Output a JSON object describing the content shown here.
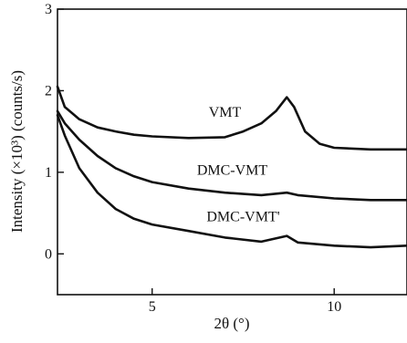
{
  "chart_data": {
    "type": "line",
    "title": "",
    "xlabel": "2θ (°)",
    "ylabel": "Intensity (×10³) (counts/s)",
    "xlim": [
      2.4,
      12
    ],
    "ylim": [
      -0.5,
      3
    ],
    "x_ticks": [
      5,
      10
    ],
    "y_ticks": [
      0,
      1,
      2,
      3
    ],
    "grid": false,
    "series": [
      {
        "name": "VMT",
        "points": [
          [
            2.4,
            2.05
          ],
          [
            2.6,
            1.8
          ],
          [
            3,
            1.65
          ],
          [
            3.5,
            1.55
          ],
          [
            4,
            1.5
          ],
          [
            4.5,
            1.46
          ],
          [
            5,
            1.44
          ],
          [
            6,
            1.42
          ],
          [
            7,
            1.43
          ],
          [
            7.5,
            1.5
          ],
          [
            8,
            1.6
          ],
          [
            8.4,
            1.75
          ],
          [
            8.7,
            1.92
          ],
          [
            8.9,
            1.8
          ],
          [
            9.2,
            1.5
          ],
          [
            9.6,
            1.35
          ],
          [
            10,
            1.3
          ],
          [
            11,
            1.28
          ],
          [
            12,
            1.28
          ]
        ]
      },
      {
        "name": "DMC-VMT",
        "points": [
          [
            2.4,
            1.75
          ],
          [
            2.6,
            1.6
          ],
          [
            3,
            1.4
          ],
          [
            3.5,
            1.2
          ],
          [
            4,
            1.05
          ],
          [
            4.5,
            0.95
          ],
          [
            5,
            0.88
          ],
          [
            6,
            0.8
          ],
          [
            7,
            0.75
          ],
          [
            8,
            0.72
          ],
          [
            8.7,
            0.75
          ],
          [
            9,
            0.72
          ],
          [
            10,
            0.68
          ],
          [
            11,
            0.66
          ],
          [
            12,
            0.66
          ]
        ]
      },
      {
        "name": "DMC-VMT'",
        "points": [
          [
            2.4,
            1.7
          ],
          [
            2.6,
            1.45
          ],
          [
            3,
            1.05
          ],
          [
            3.5,
            0.75
          ],
          [
            4,
            0.55
          ],
          [
            4.5,
            0.43
          ],
          [
            5,
            0.36
          ],
          [
            6,
            0.28
          ],
          [
            7,
            0.2
          ],
          [
            8,
            0.15
          ],
          [
            8.7,
            0.22
          ],
          [
            9,
            0.14
          ],
          [
            10,
            0.1
          ],
          [
            11,
            0.08
          ],
          [
            12,
            0.1
          ]
        ]
      }
    ],
    "annotations": [
      {
        "text": "VMT",
        "x": 7.0,
        "y": 1.68
      },
      {
        "text": "DMC-VMT",
        "x": 7.2,
        "y": 0.97
      },
      {
        "text": "DMC-VMT'",
        "x": 7.5,
        "y": 0.4
      }
    ]
  }
}
